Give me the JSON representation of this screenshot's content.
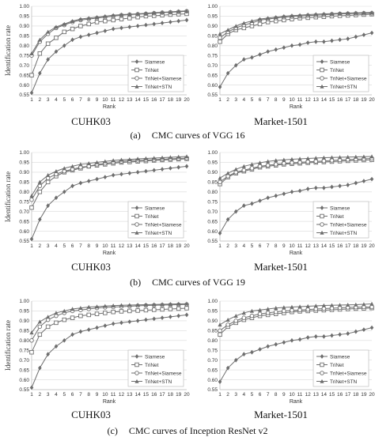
{
  "rows": [
    {
      "letter": "(a)",
      "caption": "CMC curves of VGG 16"
    },
    {
      "letter": "(b)",
      "caption": "CMC curves of VGG 19"
    },
    {
      "letter": "(c)",
      "caption": "CMC curves of Inception ResNet v2"
    }
  ],
  "datasets": [
    "CUHK03",
    "Market-1501"
  ],
  "legend": [
    "Siamese",
    "TriNet",
    "TriNet+Siamese",
    "TriNet+STN"
  ],
  "colors": {
    "line": "#6e6e6e",
    "grid": "#d9d9d9",
    "axis": "#bfbfbf",
    "text": "#333333"
  },
  "chart_data": [
    {
      "type": "line",
      "title": "",
      "dataset": "CUHK03",
      "xlabel": "Rank",
      "ylabel": "Identification rate",
      "x": [
        1,
        2,
        3,
        4,
        5,
        6,
        7,
        8,
        9,
        10,
        11,
        12,
        13,
        14,
        15,
        16,
        17,
        18,
        19,
        20
      ],
      "yticks": [
        0.55,
        0.6,
        0.65,
        0.7,
        0.75,
        0.8,
        0.85,
        0.9,
        0.95,
        1.0
      ],
      "ylim": [
        0.55,
        1.0
      ],
      "grid": true,
      "legend_position": "bottom-right",
      "series": [
        {
          "name": "Siamese",
          "marker": "diamond",
          "values": [
            0.56,
            0.66,
            0.73,
            0.77,
            0.8,
            0.83,
            0.845,
            0.855,
            0.865,
            0.875,
            0.885,
            0.89,
            0.895,
            0.9,
            0.905,
            0.91,
            0.915,
            0.92,
            0.925,
            0.93
          ]
        },
        {
          "name": "TriNet",
          "marker": "square",
          "values": [
            0.65,
            0.76,
            0.81,
            0.84,
            0.87,
            0.885,
            0.9,
            0.91,
            0.92,
            0.925,
            0.93,
            0.935,
            0.94,
            0.945,
            0.95,
            0.952,
            0.955,
            0.958,
            0.96,
            0.962
          ]
        },
        {
          "name": "TriNet+Siamese",
          "marker": "circle",
          "values": [
            0.75,
            0.82,
            0.86,
            0.89,
            0.905,
            0.92,
            0.93,
            0.935,
            0.94,
            0.945,
            0.95,
            0.955,
            0.958,
            0.96,
            0.962,
            0.965,
            0.968,
            0.97,
            0.972,
            0.975
          ]
        },
        {
          "name": "TriNet+STN",
          "marker": "triangle",
          "values": [
            0.76,
            0.83,
            0.87,
            0.895,
            0.91,
            0.925,
            0.935,
            0.94,
            0.945,
            0.95,
            0.955,
            0.958,
            0.96,
            0.962,
            0.965,
            0.968,
            0.97,
            0.972,
            0.975,
            0.977
          ]
        }
      ]
    },
    {
      "type": "line",
      "title": "",
      "dataset": "Market-1501",
      "xlabel": "Rank",
      "ylabel": "",
      "x": [
        1,
        2,
        3,
        4,
        5,
        6,
        7,
        8,
        9,
        10,
        11,
        12,
        13,
        14,
        15,
        16,
        17,
        18,
        19,
        20
      ],
      "yticks": [
        0.55,
        0.6,
        0.65,
        0.7,
        0.75,
        0.8,
        0.85,
        0.9,
        0.95,
        1.0
      ],
      "ylim": [
        0.55,
        1.0
      ],
      "grid": true,
      "legend_position": "bottom-right",
      "series": [
        {
          "name": "Siamese",
          "marker": "diamond",
          "values": [
            0.59,
            0.66,
            0.7,
            0.73,
            0.74,
            0.755,
            0.77,
            0.78,
            0.79,
            0.8,
            0.805,
            0.815,
            0.82,
            0.82,
            0.825,
            0.83,
            0.835,
            0.845,
            0.855,
            0.865
          ]
        },
        {
          "name": "TriNet",
          "marker": "square",
          "values": [
            0.82,
            0.86,
            0.88,
            0.89,
            0.9,
            0.91,
            0.92,
            0.925,
            0.93,
            0.935,
            0.94,
            0.942,
            0.945,
            0.947,
            0.95,
            0.952,
            0.954,
            0.956,
            0.958,
            0.96
          ]
        },
        {
          "name": "TriNet+Siamese",
          "marker": "circle",
          "values": [
            0.84,
            0.87,
            0.89,
            0.905,
            0.915,
            0.93,
            0.935,
            0.94,
            0.945,
            0.948,
            0.95,
            0.953,
            0.955,
            0.957,
            0.96,
            0.962,
            0.963,
            0.964,
            0.965,
            0.965
          ]
        },
        {
          "name": "TriNet+STN",
          "marker": "triangle",
          "values": [
            0.86,
            0.88,
            0.9,
            0.915,
            0.925,
            0.935,
            0.94,
            0.945,
            0.95,
            0.953,
            0.955,
            0.958,
            0.96,
            0.962,
            0.963,
            0.965,
            0.966,
            0.967,
            0.968,
            0.969
          ]
        }
      ]
    },
    {
      "type": "line",
      "title": "",
      "dataset": "CUHK03",
      "xlabel": "Rank",
      "ylabel": "Identification rate",
      "x": [
        1,
        2,
        3,
        4,
        5,
        6,
        7,
        8,
        9,
        10,
        11,
        12,
        13,
        14,
        15,
        16,
        17,
        18,
        19,
        20
      ],
      "yticks": [
        0.55,
        0.6,
        0.65,
        0.7,
        0.75,
        0.8,
        0.85,
        0.9,
        0.95,
        1.0
      ],
      "ylim": [
        0.55,
        1.0
      ],
      "grid": true,
      "legend_position": "bottom-right",
      "series": [
        {
          "name": "Siamese",
          "marker": "diamond",
          "values": [
            0.56,
            0.66,
            0.73,
            0.77,
            0.8,
            0.83,
            0.845,
            0.855,
            0.865,
            0.875,
            0.885,
            0.89,
            0.895,
            0.9,
            0.905,
            0.91,
            0.915,
            0.92,
            0.925,
            0.93
          ]
        },
        {
          "name": "TriNet",
          "marker": "square",
          "values": [
            0.72,
            0.8,
            0.85,
            0.88,
            0.9,
            0.91,
            0.92,
            0.93,
            0.935,
            0.94,
            0.945,
            0.95,
            0.952,
            0.955,
            0.957,
            0.96,
            0.962,
            0.964,
            0.966,
            0.968
          ]
        },
        {
          "name": "TriNet+Siamese",
          "marker": "circle",
          "values": [
            0.76,
            0.83,
            0.87,
            0.89,
            0.905,
            0.915,
            0.925,
            0.93,
            0.94,
            0.945,
            0.95,
            0.955,
            0.958,
            0.96,
            0.962,
            0.964,
            0.966,
            0.968,
            0.97,
            0.972
          ]
        },
        {
          "name": "TriNet+STN",
          "marker": "triangle",
          "values": [
            0.78,
            0.85,
            0.885,
            0.905,
            0.92,
            0.93,
            0.94,
            0.945,
            0.95,
            0.955,
            0.96,
            0.963,
            0.965,
            0.968,
            0.97,
            0.972,
            0.974,
            0.976,
            0.978,
            0.98
          ]
        }
      ]
    },
    {
      "type": "line",
      "title": "",
      "dataset": "Market-1501",
      "xlabel": "Rank",
      "ylabel": "",
      "x": [
        1,
        2,
        3,
        4,
        5,
        6,
        7,
        8,
        9,
        10,
        11,
        12,
        13,
        14,
        15,
        16,
        17,
        18,
        19,
        20
      ],
      "yticks": [
        0.55,
        0.6,
        0.65,
        0.7,
        0.75,
        0.8,
        0.85,
        0.9,
        0.95,
        1.0
      ],
      "ylim": [
        0.55,
        1.0
      ],
      "grid": true,
      "legend_position": "bottom-right",
      "series": [
        {
          "name": "Siamese",
          "marker": "diamond",
          "values": [
            0.59,
            0.66,
            0.7,
            0.73,
            0.74,
            0.755,
            0.77,
            0.78,
            0.79,
            0.8,
            0.805,
            0.815,
            0.82,
            0.82,
            0.825,
            0.83,
            0.835,
            0.845,
            0.855,
            0.865
          ]
        },
        {
          "name": "TriNet",
          "marker": "square",
          "values": [
            0.84,
            0.875,
            0.895,
            0.905,
            0.915,
            0.925,
            0.93,
            0.935,
            0.94,
            0.943,
            0.945,
            0.948,
            0.95,
            0.952,
            0.954,
            0.956,
            0.958,
            0.96,
            0.962,
            0.963
          ]
        },
        {
          "name": "TriNet+Siamese",
          "marker": "circle",
          "values": [
            0.85,
            0.88,
            0.9,
            0.91,
            0.92,
            0.93,
            0.935,
            0.94,
            0.945,
            0.948,
            0.95,
            0.953,
            0.955,
            0.957,
            0.96,
            0.962,
            0.964,
            0.966,
            0.968,
            0.97
          ]
        },
        {
          "name": "TriNet+STN",
          "marker": "triangle",
          "values": [
            0.87,
            0.895,
            0.915,
            0.93,
            0.94,
            0.948,
            0.955,
            0.96,
            0.963,
            0.966,
            0.968,
            0.97,
            0.972,
            0.974,
            0.975,
            0.976,
            0.977,
            0.978,
            0.979,
            0.98
          ]
        }
      ]
    },
    {
      "type": "line",
      "title": "",
      "dataset": "CUHK03",
      "xlabel": "Rank",
      "ylabel": "Identification rate",
      "x": [
        1,
        2,
        3,
        4,
        5,
        6,
        7,
        8,
        9,
        10,
        11,
        12,
        13,
        14,
        15,
        16,
        17,
        18,
        19,
        20
      ],
      "yticks": [
        0.55,
        0.6,
        0.65,
        0.7,
        0.75,
        0.8,
        0.85,
        0.9,
        0.95,
        1.0
      ],
      "ylim": [
        0.55,
        1.0
      ],
      "grid": true,
      "legend_position": "bottom-right",
      "series": [
        {
          "name": "Siamese",
          "marker": "diamond",
          "values": [
            0.56,
            0.66,
            0.73,
            0.77,
            0.8,
            0.83,
            0.845,
            0.855,
            0.865,
            0.875,
            0.885,
            0.89,
            0.895,
            0.9,
            0.905,
            0.91,
            0.915,
            0.92,
            0.925,
            0.93
          ]
        },
        {
          "name": "TriNet",
          "marker": "square",
          "values": [
            0.74,
            0.83,
            0.87,
            0.89,
            0.905,
            0.915,
            0.925,
            0.93,
            0.935,
            0.94,
            0.945,
            0.948,
            0.95,
            0.952,
            0.954,
            0.956,
            0.958,
            0.96,
            0.962,
            0.964
          ]
        },
        {
          "name": "TriNet+Siamese",
          "marker": "circle",
          "values": [
            0.8,
            0.87,
            0.905,
            0.925,
            0.94,
            0.95,
            0.955,
            0.96,
            0.965,
            0.968,
            0.97,
            0.972,
            0.974,
            0.976,
            0.978,
            0.979,
            0.98,
            0.981,
            0.982,
            0.983
          ]
        },
        {
          "name": "TriNet+STN",
          "marker": "triangle",
          "values": [
            0.84,
            0.895,
            0.92,
            0.94,
            0.95,
            0.96,
            0.965,
            0.97,
            0.972,
            0.975,
            0.977,
            0.979,
            0.98,
            0.981,
            0.982,
            0.983,
            0.984,
            0.985,
            0.986,
            0.987
          ]
        }
      ]
    },
    {
      "type": "line",
      "title": "",
      "dataset": "Market-1501",
      "xlabel": "Rank",
      "ylabel": "",
      "x": [
        1,
        2,
        3,
        4,
        5,
        6,
        7,
        8,
        9,
        10,
        11,
        12,
        13,
        14,
        15,
        16,
        17,
        18,
        19,
        20
      ],
      "yticks": [
        0.55,
        0.6,
        0.65,
        0.7,
        0.75,
        0.8,
        0.85,
        0.9,
        0.95,
        1.0
      ],
      "ylim": [
        0.55,
        1.0
      ],
      "grid": true,
      "legend_position": "bottom-right",
      "series": [
        {
          "name": "Siamese",
          "marker": "diamond",
          "values": [
            0.59,
            0.66,
            0.7,
            0.73,
            0.74,
            0.755,
            0.77,
            0.78,
            0.79,
            0.8,
            0.805,
            0.815,
            0.82,
            0.82,
            0.825,
            0.83,
            0.835,
            0.845,
            0.855,
            0.865
          ]
        },
        {
          "name": "TriNet",
          "marker": "square",
          "values": [
            0.83,
            0.87,
            0.89,
            0.905,
            0.915,
            0.925,
            0.93,
            0.935,
            0.94,
            0.945,
            0.948,
            0.95,
            0.952,
            0.954,
            0.956,
            0.958,
            0.96,
            0.962,
            0.963,
            0.965
          ]
        },
        {
          "name": "TriNet+Siamese",
          "marker": "circle",
          "values": [
            0.85,
            0.88,
            0.9,
            0.915,
            0.925,
            0.935,
            0.94,
            0.945,
            0.95,
            0.953,
            0.955,
            0.957,
            0.96,
            0.962,
            0.964,
            0.966,
            0.968,
            0.969,
            0.97,
            0.97
          ]
        },
        {
          "name": "TriNet+STN",
          "marker": "triangle",
          "values": [
            0.88,
            0.905,
            0.925,
            0.94,
            0.95,
            0.955,
            0.96,
            0.965,
            0.968,
            0.97,
            0.972,
            0.974,
            0.976,
            0.978,
            0.979,
            0.98,
            0.981,
            0.982,
            0.984,
            0.986
          ]
        }
      ]
    }
  ]
}
